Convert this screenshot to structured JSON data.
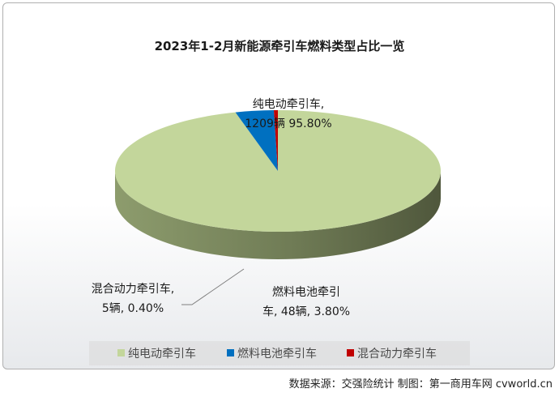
{
  "chart_data": {
    "type": "pie",
    "title": "2023年1-2月新能源牵引车燃料类型占比一览",
    "slices": [
      {
        "name": "纯电动牵引车",
        "value": 1209,
        "percent": 95.8,
        "label_line1": "纯电动牵引车,",
        "label_line2": "1209辆 95.80%",
        "color": "#c3d69b"
      },
      {
        "name": "燃料电池牵引车",
        "value": 48,
        "percent": 3.8,
        "label_line1": "燃料电池牵引",
        "label_line2": "车, 48辆, 3.80%",
        "color": "#0070c0"
      },
      {
        "name": "混合动力牵引车",
        "value": 5,
        "percent": 0.4,
        "label_line1": "混合动力牵引车,",
        "label_line2": "5辆, 0.40%",
        "color": "#c00000"
      }
    ],
    "legend": [
      "纯电动牵引车",
      "燃料电池牵引车",
      "混合动力牵引车"
    ],
    "legend_position": "bottom",
    "style": "3d"
  },
  "source_note": "数据来源：交强险统计  制图：第一商用车网 cvworld.cn"
}
